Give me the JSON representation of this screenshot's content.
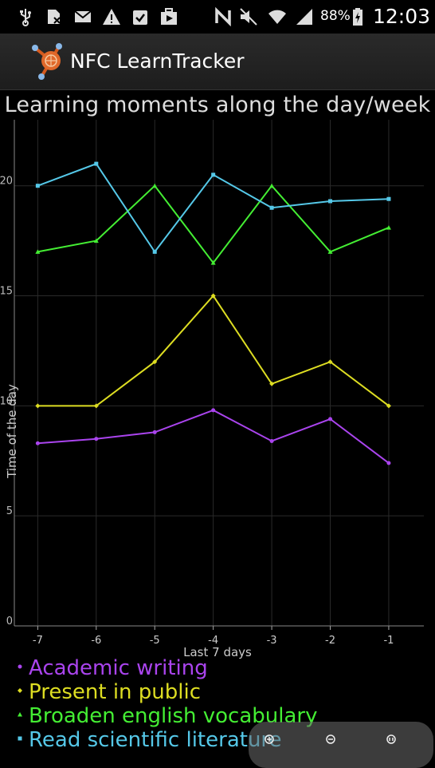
{
  "status_bar": {
    "battery_percent": "88%",
    "time": "12:03",
    "icons": [
      "usb-icon",
      "sim-blocked-icon",
      "mail-icon",
      "warning-icon",
      "clipboard-check-icon",
      "play-store-icon",
      "nfc-icon",
      "mute-icon",
      "wifi-icon",
      "signal-icon",
      "battery-charging-icon"
    ]
  },
  "app": {
    "title": "NFC LearnTracker",
    "logo": "learntracker-logo"
  },
  "chart_data": {
    "type": "line",
    "title": "Learning moments along the day/week",
    "xlabel": "Last 7 days",
    "ylabel": "Time of the day",
    "x": [
      -7,
      -6,
      -5,
      -4,
      -3,
      -2,
      -1
    ],
    "xticks": [
      "-7",
      "-6",
      "-5",
      "-4",
      "-3",
      "-2",
      "-1"
    ],
    "yticks": [
      "0",
      "5",
      "10",
      "15",
      "20"
    ],
    "ylim": [
      0,
      23
    ],
    "grid": true,
    "legend_position": "bottom-left",
    "series": [
      {
        "name": "Academic writing",
        "color": "#aa44ee",
        "marker": "circle",
        "values": [
          8.3,
          8.5,
          8.8,
          9.8,
          8.4,
          9.4,
          7.4
        ]
      },
      {
        "name": "Present in public",
        "color": "#dddd22",
        "marker": "diamond",
        "values": [
          10,
          10,
          12,
          15,
          11,
          12,
          10
        ]
      },
      {
        "name": "Broaden english vocabulary",
        "color": "#44ee33",
        "marker": "triangle",
        "values": [
          17,
          17.5,
          20,
          16.5,
          20,
          17,
          18.1
        ]
      },
      {
        "name": "Read scientific literature",
        "color": "#55c8e8",
        "marker": "square",
        "values": [
          20,
          21,
          17,
          20.5,
          19,
          19.3,
          19.4
        ]
      }
    ]
  },
  "zoom_controls": {
    "buttons": [
      "zoom-in-icon",
      "zoom-out-icon",
      "zoom-reset-icon"
    ]
  }
}
